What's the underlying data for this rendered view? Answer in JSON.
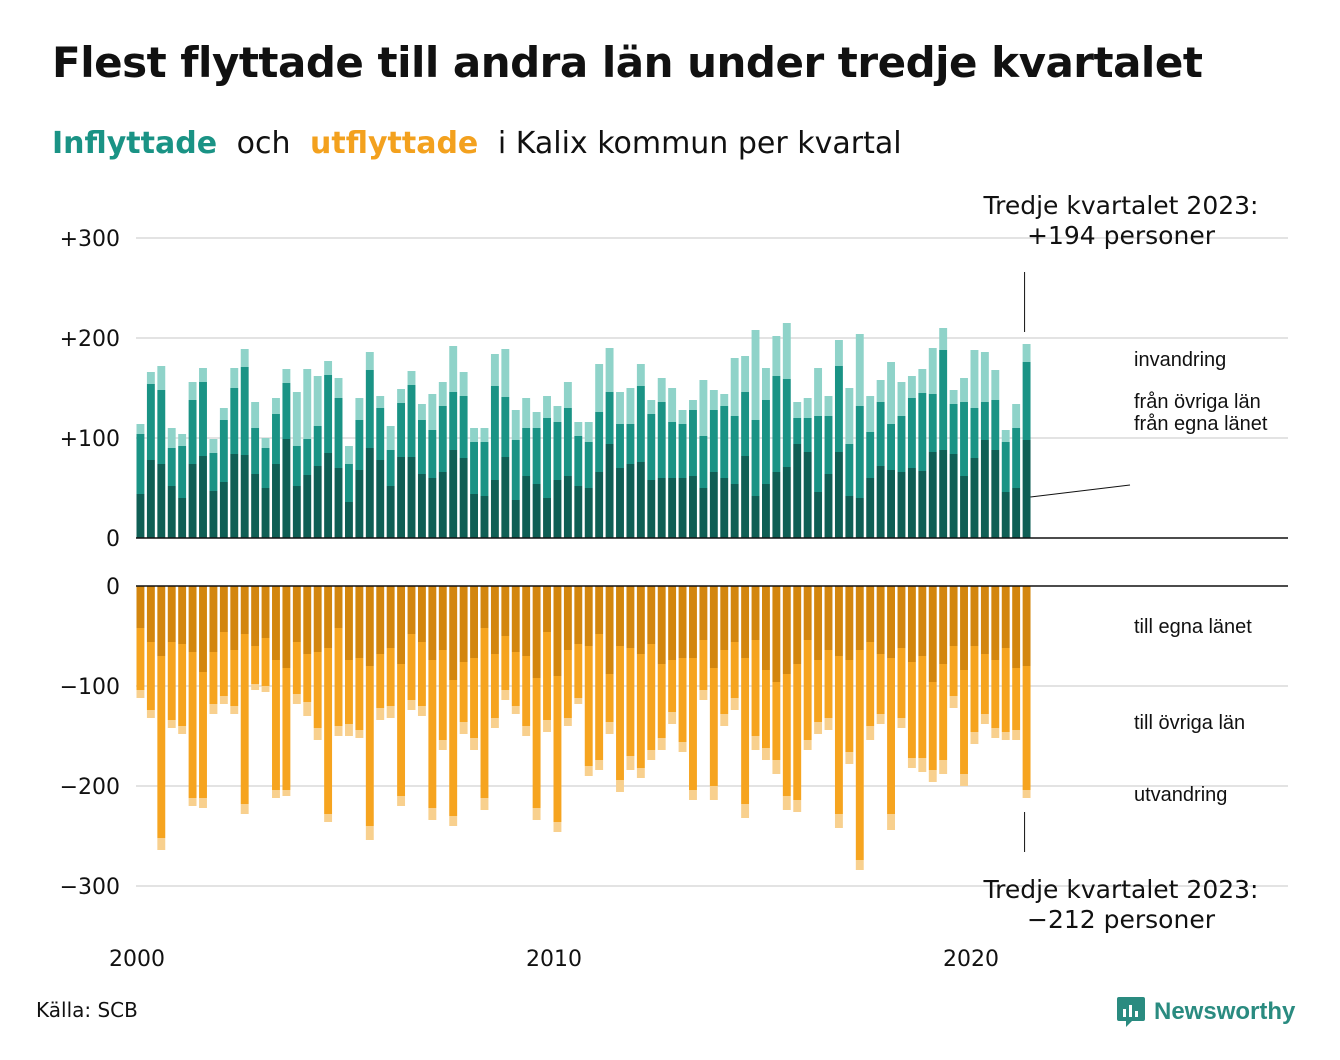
{
  "header": {
    "title": "Flest flyttade till andra län under tredje kvartalet",
    "subtitle_in": "Inflyttade",
    "subtitle_and": "och",
    "subtitle_out": "utflyttade",
    "subtitle_rest": "i Kalix kommun per kvartal"
  },
  "footer": {
    "source": "Källa: SCB",
    "brand": "Newsworthy"
  },
  "colors": {
    "in_own": "#0f5f55",
    "in_other": "#1a9385",
    "in_immig": "#8fd3c9",
    "out_own": "#d3860e",
    "out_other": "#f6a41f",
    "out_emig": "#f8d08e",
    "grid": "#e3e3e3",
    "brand": "#2a8b80"
  },
  "chart_data": {
    "type": "bar",
    "stacked": true,
    "x_start": 2000.0,
    "x_step": 0.25,
    "x_ticks": [
      {
        "value": 2000,
        "label": "2000"
      },
      {
        "value": 2010,
        "label": "2010"
      },
      {
        "value": 2020,
        "label": "2020"
      }
    ],
    "top_panel": {
      "ylim": [
        0,
        300
      ],
      "y_ticks": [
        {
          "value": 0,
          "label": "0"
        },
        {
          "value": 100,
          "label": "+100"
        },
        {
          "value": 200,
          "label": "+200"
        },
        {
          "value": 300,
          "label": "+300"
        }
      ],
      "series": [
        {
          "name": "från egna länet",
          "key": "in_own",
          "values": [
            44,
            78,
            74,
            52,
            40,
            74,
            82,
            47,
            56,
            84,
            83,
            64,
            50,
            74,
            99,
            52,
            63,
            72,
            85,
            70,
            36,
            68,
            90,
            78,
            52,
            81,
            81,
            64,
            60,
            66,
            88,
            80,
            44,
            42,
            58,
            81,
            38,
            62,
            54,
            40,
            58,
            62,
            52,
            50,
            66,
            94,
            70,
            74,
            76,
            58,
            60,
            60,
            60,
            62,
            50,
            66,
            60,
            54,
            82,
            42,
            54,
            66,
            71,
            94,
            86,
            46,
            64,
            86,
            42,
            40,
            60,
            72,
            68,
            66,
            70,
            67,
            86,
            88,
            84,
            62,
            80,
            98,
            88,
            46,
            50,
            98
          ]
        },
        {
          "name": "från övriga län",
          "key": "in_other",
          "values": [
            60,
            76,
            74,
            38,
            52,
            64,
            74,
            38,
            62,
            66,
            88,
            46,
            40,
            50,
            56,
            40,
            36,
            40,
            78,
            70,
            38,
            50,
            78,
            52,
            36,
            54,
            72,
            54,
            48,
            66,
            58,
            62,
            52,
            54,
            94,
            60,
            60,
            48,
            56,
            80,
            58,
            68,
            50,
            46,
            60,
            52,
            44,
            40,
            76,
            66,
            76,
            56,
            54,
            66,
            52,
            62,
            72,
            68,
            64,
            76,
            84,
            96,
            88,
            26,
            34,
            76,
            58,
            86,
            52,
            92,
            46,
            64,
            46,
            56,
            70,
            78,
            58,
            100,
            50,
            74,
            50,
            38,
            50,
            50,
            60,
            78
          ]
        },
        {
          "name": "invandring",
          "key": "in_immig",
          "values": [
            10,
            12,
            24,
            20,
            12,
            18,
            14,
            14,
            12,
            20,
            18,
            26,
            10,
            16,
            14,
            54,
            70,
            50,
            14,
            20,
            18,
            22,
            18,
            12,
            24,
            14,
            14,
            16,
            36,
            24,
            46,
            24,
            14,
            14,
            32,
            48,
            30,
            30,
            16,
            22,
            16,
            26,
            14,
            20,
            48,
            44,
            32,
            36,
            22,
            14,
            24,
            34,
            14,
            10,
            56,
            20,
            12,
            58,
            36,
            90,
            32,
            40,
            56,
            16,
            20,
            48,
            20,
            26,
            56,
            72,
            36,
            22,
            62,
            34,
            22,
            24,
            46,
            22,
            14,
            24,
            58,
            50,
            30,
            12,
            24,
            18
          ]
        }
      ]
    },
    "bottom_panel": {
      "ylim": [
        -300,
        0
      ],
      "y_ticks": [
        {
          "value": 0,
          "label": "0"
        },
        {
          "value": -100,
          "label": "−100"
        },
        {
          "value": -200,
          "label": "−200"
        },
        {
          "value": -300,
          "label": "−300"
        }
      ],
      "series": [
        {
          "name": "till egna länet",
          "key": "out_own",
          "values": [
            42,
            56,
            70,
            56,
            58,
            66,
            86,
            66,
            46,
            64,
            48,
            60,
            52,
            74,
            82,
            56,
            68,
            66,
            62,
            42,
            74,
            72,
            80,
            68,
            62,
            78,
            48,
            56,
            74,
            64,
            94,
            76,
            72,
            42,
            68,
            50,
            66,
            70,
            92,
            46,
            90,
            64,
            58,
            60,
            48,
            88,
            60,
            62,
            68,
            58,
            78,
            74,
            72,
            72,
            54,
            82,
            64,
            56,
            72,
            54,
            84,
            96,
            88,
            78,
            54,
            74,
            64,
            70,
            74,
            64,
            56,
            68,
            72,
            62,
            76,
            70,
            96,
            78,
            60,
            84,
            60,
            68,
            74,
            62,
            82,
            80
          ]
        },
        {
          "name": "till övriga län",
          "key": "out_other",
          "values": [
            62,
            68,
            182,
            78,
            82,
            146,
            126,
            52,
            64,
            56,
            170,
            38,
            48,
            130,
            122,
            52,
            48,
            76,
            166,
            98,
            64,
            72,
            160,
            54,
            58,
            132,
            66,
            64,
            148,
            90,
            136,
            60,
            80,
            170,
            64,
            54,
            54,
            70,
            130,
            88,
            146,
            68,
            54,
            120,
            126,
            48,
            134,
            108,
            114,
            106,
            74,
            52,
            84,
            132,
            50,
            118,
            64,
            56,
            146,
            96,
            78,
            78,
            122,
            136,
            100,
            62,
            68,
            158,
            92,
            210,
            84,
            60,
            156,
            70,
            96,
            102,
            88,
            96,
            50,
            104,
            86,
            60,
            68,
            84,
            62,
            124
          ]
        },
        {
          "name": "utvandring",
          "key": "out_emig",
          "values": [
            8,
            8,
            12,
            8,
            8,
            8,
            10,
            10,
            8,
            8,
            10,
            6,
            6,
            8,
            6,
            10,
            14,
            12,
            8,
            10,
            12,
            8,
            14,
            12,
            12,
            10,
            10,
            10,
            12,
            10,
            10,
            12,
            12,
            12,
            10,
            10,
            8,
            10,
            12,
            12,
            10,
            8,
            6,
            10,
            10,
            12,
            12,
            14,
            10,
            10,
            12,
            12,
            10,
            10,
            10,
            14,
            12,
            12,
            14,
            14,
            12,
            14,
            14,
            12,
            10,
            12,
            12,
            14,
            12,
            10,
            14,
            10,
            16,
            10,
            10,
            14,
            12,
            14,
            12,
            12,
            12,
            10,
            10,
            8,
            10,
            8
          ]
        }
      ]
    },
    "callouts": {
      "top": [
        "Tredje kvartalet 2023:",
        "+194 personer"
      ],
      "bottom": [
        "Tredje kvartalet 2023:",
        "−212 personer"
      ]
    }
  }
}
